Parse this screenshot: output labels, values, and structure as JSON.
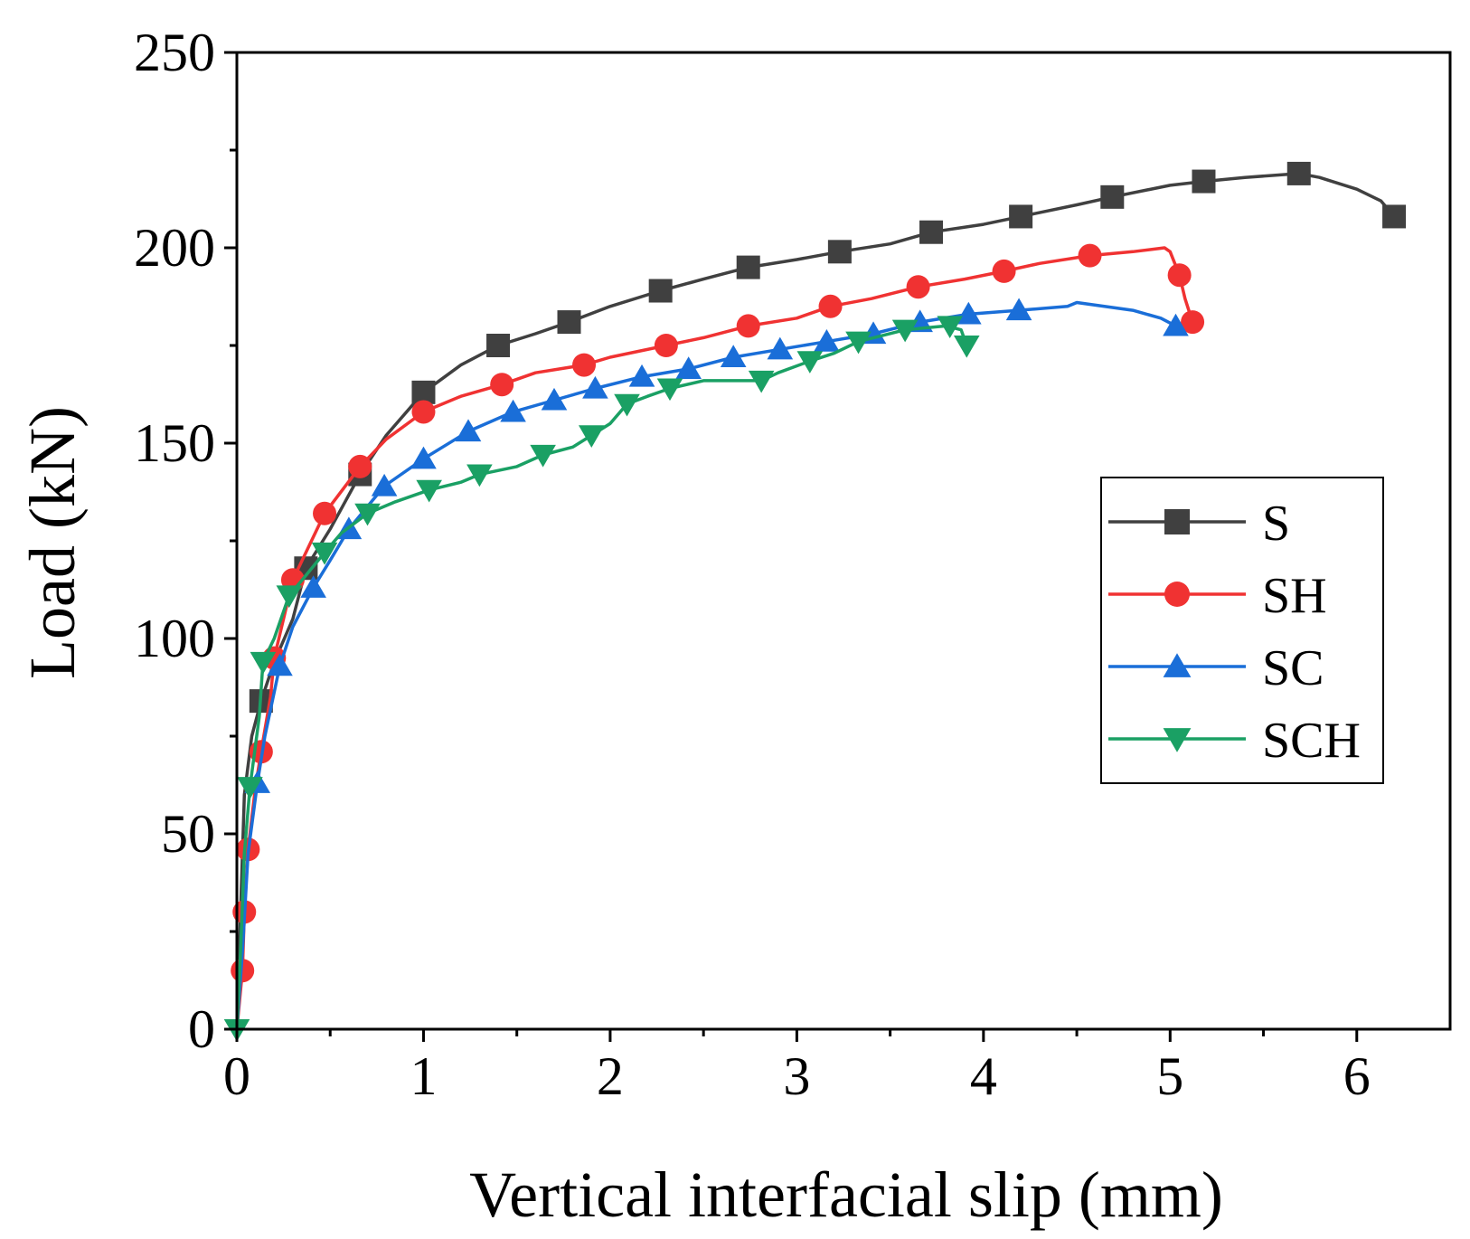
{
  "chart_data": {
    "type": "line",
    "title": "",
    "xlabel": "Vertical interfacial slip (mm)",
    "ylabel": "Load (kN)",
    "xlim": [
      0,
      6.5
    ],
    "ylim": [
      0,
      250
    ],
    "xticks": [
      0,
      1,
      2,
      3,
      4,
      5,
      6
    ],
    "yticks": [
      0,
      50,
      100,
      150,
      200,
      250
    ],
    "grid": false,
    "legend_position": "center-right",
    "series": [
      {
        "name": "S",
        "color": "#404040",
        "marker": "square",
        "points": [
          [
            0.0,
            0
          ],
          [
            0.02,
            30
          ],
          [
            0.04,
            60
          ],
          [
            0.08,
            75
          ],
          [
            0.13,
            84
          ],
          [
            0.2,
            94
          ],
          [
            0.3,
            105
          ],
          [
            0.37,
            118
          ],
          [
            0.5,
            128
          ],
          [
            0.66,
            142
          ],
          [
            0.8,
            152
          ],
          [
            1.0,
            163
          ],
          [
            1.2,
            170
          ],
          [
            1.4,
            175
          ],
          [
            1.6,
            178
          ],
          [
            1.78,
            181
          ],
          [
            2.0,
            185
          ],
          [
            2.27,
            189
          ],
          [
            2.5,
            192
          ],
          [
            2.74,
            195
          ],
          [
            3.0,
            197
          ],
          [
            3.23,
            199
          ],
          [
            3.5,
            201
          ],
          [
            3.72,
            204
          ],
          [
            4.0,
            206
          ],
          [
            4.2,
            208
          ],
          [
            4.5,
            211
          ],
          [
            4.69,
            213
          ],
          [
            5.0,
            216
          ],
          [
            5.18,
            217
          ],
          [
            5.4,
            218
          ],
          [
            5.69,
            219
          ],
          [
            5.8,
            218
          ],
          [
            6.0,
            215
          ],
          [
            6.13,
            212
          ],
          [
            6.2,
            208
          ]
        ],
        "marker_points": [
          [
            0.13,
            84
          ],
          [
            0.37,
            118
          ],
          [
            0.66,
            142
          ],
          [
            1.0,
            163
          ],
          [
            1.4,
            175
          ],
          [
            1.78,
            181
          ],
          [
            2.27,
            189
          ],
          [
            2.74,
            195
          ],
          [
            3.23,
            199
          ],
          [
            3.72,
            204
          ],
          [
            4.2,
            208
          ],
          [
            4.69,
            213
          ],
          [
            5.18,
            217
          ],
          [
            5.69,
            219
          ],
          [
            6.2,
            208
          ]
        ]
      },
      {
        "name": "SH",
        "color": "#f03232",
        "marker": "circle",
        "points": [
          [
            0.0,
            0
          ],
          [
            0.03,
            15
          ],
          [
            0.04,
            30
          ],
          [
            0.06,
            46
          ],
          [
            0.1,
            62
          ],
          [
            0.13,
            71
          ],
          [
            0.18,
            85
          ],
          [
            0.2,
            95
          ],
          [
            0.3,
            115
          ],
          [
            0.47,
            132
          ],
          [
            0.66,
            144
          ],
          [
            0.8,
            151
          ],
          [
            1.0,
            158
          ],
          [
            1.2,
            162
          ],
          [
            1.42,
            165
          ],
          [
            1.6,
            168
          ],
          [
            1.86,
            170
          ],
          [
            2.0,
            172
          ],
          [
            2.3,
            175
          ],
          [
            2.5,
            177
          ],
          [
            2.74,
            180
          ],
          [
            3.0,
            182
          ],
          [
            3.18,
            185
          ],
          [
            3.4,
            187
          ],
          [
            3.65,
            190
          ],
          [
            3.9,
            192
          ],
          [
            4.11,
            194
          ],
          [
            4.3,
            196
          ],
          [
            4.57,
            198
          ],
          [
            4.8,
            199
          ],
          [
            4.97,
            200
          ],
          [
            5.0,
            199
          ],
          [
            5.05,
            193
          ],
          [
            5.08,
            187
          ],
          [
            5.12,
            181
          ]
        ],
        "marker_points": [
          [
            0.03,
            15
          ],
          [
            0.04,
            30
          ],
          [
            0.06,
            46
          ],
          [
            0.13,
            71
          ],
          [
            0.2,
            95
          ],
          [
            0.3,
            115
          ],
          [
            0.47,
            132
          ],
          [
            0.66,
            144
          ],
          [
            1.0,
            158
          ],
          [
            1.42,
            165
          ],
          [
            1.86,
            170
          ],
          [
            2.3,
            175
          ],
          [
            2.74,
            180
          ],
          [
            3.18,
            185
          ],
          [
            3.65,
            190
          ],
          [
            4.11,
            194
          ],
          [
            4.57,
            198
          ],
          [
            5.05,
            193
          ],
          [
            5.12,
            181
          ]
        ]
      },
      {
        "name": "SC",
        "color": "#1a6ed8",
        "marker": "triangle-up",
        "points": [
          [
            0.0,
            0
          ],
          [
            0.03,
            20
          ],
          [
            0.06,
            45
          ],
          [
            0.11,
            63
          ],
          [
            0.15,
            75
          ],
          [
            0.23,
            93
          ],
          [
            0.3,
            103
          ],
          [
            0.41,
            113
          ],
          [
            0.5,
            120
          ],
          [
            0.6,
            128
          ],
          [
            0.79,
            139
          ],
          [
            1.0,
            146
          ],
          [
            1.24,
            153
          ],
          [
            1.48,
            158
          ],
          [
            1.7,
            161
          ],
          [
            1.92,
            164
          ],
          [
            2.17,
            167
          ],
          [
            2.42,
            169
          ],
          [
            2.66,
            172
          ],
          [
            2.91,
            174
          ],
          [
            3.16,
            176
          ],
          [
            3.41,
            178
          ],
          [
            3.66,
            181
          ],
          [
            3.92,
            183
          ],
          [
            4.19,
            184
          ],
          [
            4.45,
            185
          ],
          [
            4.5,
            186
          ],
          [
            4.8,
            184
          ],
          [
            4.95,
            182
          ],
          [
            5.03,
            180
          ]
        ],
        "marker_points": [
          [
            0.11,
            63
          ],
          [
            0.23,
            93
          ],
          [
            0.41,
            113
          ],
          [
            0.6,
            128
          ],
          [
            0.79,
            139
          ],
          [
            1.0,
            146
          ],
          [
            1.24,
            153
          ],
          [
            1.48,
            158
          ],
          [
            1.7,
            161
          ],
          [
            1.92,
            164
          ],
          [
            2.17,
            167
          ],
          [
            2.42,
            169
          ],
          [
            2.66,
            172
          ],
          [
            2.91,
            174
          ],
          [
            3.16,
            176
          ],
          [
            3.41,
            178
          ],
          [
            3.66,
            181
          ],
          [
            3.92,
            183
          ],
          [
            4.19,
            184
          ],
          [
            5.03,
            180
          ]
        ]
      },
      {
        "name": "SCH",
        "color": "#1aa064",
        "marker": "triangle-down",
        "points": [
          [
            0.0,
            0
          ],
          [
            0.02,
            20
          ],
          [
            0.04,
            45
          ],
          [
            0.07,
            62
          ],
          [
            0.12,
            80
          ],
          [
            0.14,
            94
          ],
          [
            0.2,
            100
          ],
          [
            0.28,
            111
          ],
          [
            0.35,
            115
          ],
          [
            0.47,
            122
          ],
          [
            0.56,
            127
          ],
          [
            0.7,
            132
          ],
          [
            0.85,
            135
          ],
          [
            1.03,
            138
          ],
          [
            1.2,
            140
          ],
          [
            1.3,
            142
          ],
          [
            1.5,
            144
          ],
          [
            1.64,
            147
          ],
          [
            1.8,
            149
          ],
          [
            1.9,
            152
          ],
          [
            2.0,
            155
          ],
          [
            2.09,
            160
          ],
          [
            2.2,
            162
          ],
          [
            2.32,
            164
          ],
          [
            2.5,
            166
          ],
          [
            2.81,
            166
          ],
          [
            2.9,
            168
          ],
          [
            3.07,
            171
          ],
          [
            3.2,
            173
          ],
          [
            3.33,
            176
          ],
          [
            3.58,
            179
          ],
          [
            3.8,
            180
          ],
          [
            3.88,
            179
          ],
          [
            3.91,
            175
          ]
        ],
        "marker_points": [
          [
            0.0,
            0
          ],
          [
            0.07,
            62
          ],
          [
            0.14,
            94
          ],
          [
            0.28,
            111
          ],
          [
            0.47,
            122
          ],
          [
            0.7,
            132
          ],
          [
            1.03,
            138
          ],
          [
            1.3,
            142
          ],
          [
            1.64,
            147
          ],
          [
            1.9,
            152
          ],
          [
            2.09,
            160
          ],
          [
            2.32,
            164
          ],
          [
            2.81,
            166
          ],
          [
            3.07,
            171
          ],
          [
            3.33,
            176
          ],
          [
            3.58,
            179
          ],
          [
            3.82,
            180
          ],
          [
            3.91,
            175
          ]
        ]
      }
    ]
  }
}
